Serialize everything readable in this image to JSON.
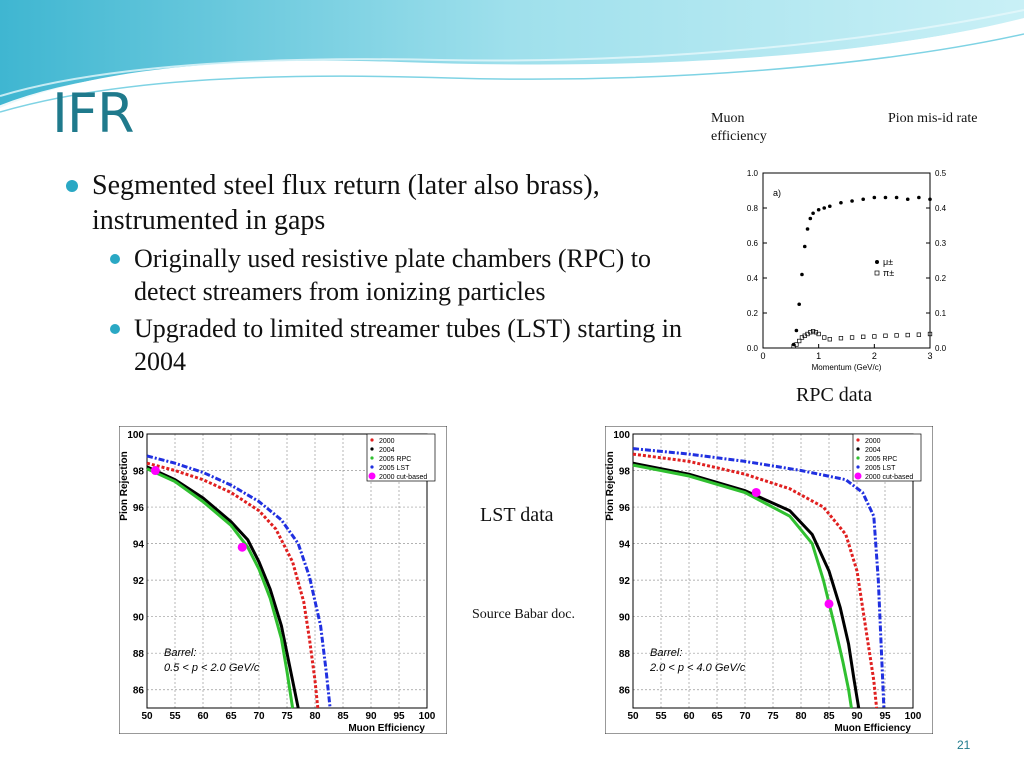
{
  "slide": {
    "title": "IFR",
    "bullets": [
      {
        "text": "Segmented steel flux return (later also brass), instrumented in gaps"
      },
      {
        "text": "Originally used resistive plate chambers (RPC) to detect streamers from ionizing particles"
      },
      {
        "text": "Upgraded to limited streamer tubes (LST) starting in 2004"
      }
    ],
    "labels": {
      "muon_efficiency": "Muon efficiency",
      "pion_misid": "Pion mis-id rate",
      "rpc_caption": "RPC data",
      "lst_caption": "LST data",
      "source": "Source Babar doc."
    },
    "page_number": "21",
    "colors": {
      "title": "#1f7a8c",
      "bullet": "#2aa8c4",
      "wave": "#6ccde0"
    }
  },
  "chart_data": [
    {
      "type": "scatter",
      "panel_label": "a)",
      "xlabel": "Momentum  (GeV/c)",
      "ylabel": "",
      "xlim": [
        0,
        3
      ],
      "ylim": [
        0,
        1.0
      ],
      "y2lim": [
        0,
        0.5
      ],
      "xticks": [
        "0",
        "1",
        "2",
        "3"
      ],
      "yticks": [
        "0.0",
        "0.2",
        "0.4",
        "0.6",
        "0.8",
        "1.0"
      ],
      "y2ticks": [
        "0.0",
        "0.1",
        "0.2",
        "0.3",
        "0.4",
        "0.5"
      ],
      "legend": [
        "μ±",
        "π±"
      ],
      "series": [
        {
          "name": "μ±",
          "marker": "dot",
          "x": [
            0.55,
            0.6,
            0.65,
            0.7,
            0.75,
            0.8,
            0.85,
            0.9,
            1.0,
            1.1,
            1.2,
            1.4,
            1.6,
            1.8,
            2.0,
            2.2,
            2.4,
            2.6,
            2.8,
            3.0
          ],
          "y": [
            0.02,
            0.1,
            0.25,
            0.42,
            0.58,
            0.68,
            0.74,
            0.77,
            0.79,
            0.8,
            0.81,
            0.83,
            0.84,
            0.85,
            0.86,
            0.86,
            0.86,
            0.85,
            0.86,
            0.85
          ]
        },
        {
          "name": "π±",
          "marker": "square",
          "x": [
            0.55,
            0.6,
            0.65,
            0.7,
            0.75,
            0.8,
            0.85,
            0.9,
            0.95,
            1.0,
            1.1,
            1.2,
            1.4,
            1.6,
            1.8,
            2.0,
            2.2,
            2.4,
            2.6,
            2.8,
            3.0
          ],
          "y": [
            0.005,
            0.01,
            0.02,
            0.03,
            0.035,
            0.04,
            0.045,
            0.048,
            0.045,
            0.04,
            0.03,
            0.025,
            0.028,
            0.03,
            0.032,
            0.033,
            0.035,
            0.036,
            0.037,
            0.038,
            0.04
          ]
        }
      ]
    },
    {
      "type": "line",
      "xlabel": "Muon Efficiency",
      "ylabel": "Pion Rejection",
      "xlim": [
        50,
        100
      ],
      "ylim": [
        85,
        100
      ],
      "xticks": [
        "50",
        "55",
        "60",
        "65",
        "70",
        "75",
        "80",
        "85",
        "90",
        "95",
        "100"
      ],
      "yticks": [
        "86",
        "88",
        "90",
        "92",
        "94",
        "96",
        "98",
        "100"
      ],
      "annotation": [
        "Barrel:",
        "0.5 < p < 2.0 GeV/c"
      ],
      "series": [
        {
          "name": "2000",
          "color": "#e02020",
          "x": [
            50,
            55,
            60,
            65,
            70,
            73,
            76,
            78,
            79,
            80,
            80.5
          ],
          "y": [
            98.4,
            98.0,
            97.5,
            96.8,
            95.8,
            94.8,
            93.0,
            90.8,
            88.8,
            86.5,
            85.0
          ]
        },
        {
          "name": "2004",
          "color": "#000000",
          "x": [
            50,
            55,
            60,
            65,
            68,
            70,
            72,
            74,
            75,
            76,
            77
          ],
          "y": [
            98.2,
            97.5,
            96.5,
            95.2,
            94.2,
            93.0,
            91.5,
            89.5,
            88.0,
            86.5,
            85.0
          ]
        },
        {
          "name": "2005 RPC",
          "color": "#30c030",
          "x": [
            50,
            55,
            60,
            65,
            68,
            70,
            72,
            74,
            75,
            76
          ],
          "y": [
            98.1,
            97.4,
            96.3,
            95.0,
            93.8,
            92.6,
            91.0,
            88.8,
            87.0,
            85.0
          ]
        },
        {
          "name": "2005 LST",
          "color": "#2030e0",
          "x": [
            50,
            55,
            60,
            65,
            70,
            74,
            77,
            79,
            81,
            82,
            82.7
          ],
          "y": [
            98.8,
            98.4,
            97.9,
            97.2,
            96.3,
            95.3,
            94.0,
            92.2,
            89.5,
            87.0,
            85.0
          ]
        },
        {
          "name": "2000 cut-based",
          "color": "#ff00ff",
          "marker": "dot",
          "x": [
            51.5,
            67
          ],
          "y": [
            98.0,
            93.8
          ]
        }
      ]
    },
    {
      "type": "line",
      "xlabel": "Muon Efficiency",
      "ylabel": "Pion Rejection",
      "xlim": [
        50,
        100
      ],
      "ylim": [
        85,
        100
      ],
      "xticks": [
        "50",
        "55",
        "60",
        "65",
        "70",
        "75",
        "80",
        "85",
        "90",
        "95",
        "100"
      ],
      "yticks": [
        "86",
        "88",
        "90",
        "92",
        "94",
        "96",
        "98",
        "100"
      ],
      "annotation": [
        "Barrel:",
        "2.0 < p < 4.0 GeV/c"
      ],
      "series": [
        {
          "name": "2000",
          "color": "#e02020",
          "x": [
            50,
            60,
            70,
            78,
            84,
            88,
            90,
            91,
            92,
            93,
            93.5
          ],
          "y": [
            98.9,
            98.5,
            97.8,
            97.0,
            96.0,
            94.5,
            92.5,
            90.5,
            88.5,
            86.5,
            85.0
          ]
        },
        {
          "name": "2004",
          "color": "#000000",
          "x": [
            50,
            60,
            70,
            78,
            82,
            85,
            87,
            88.5,
            89.5,
            90.3
          ],
          "y": [
            98.4,
            97.8,
            96.9,
            95.8,
            94.5,
            92.5,
            90.5,
            88.5,
            86.5,
            85.0
          ]
        },
        {
          "name": "2005 RPC",
          "color": "#30c030",
          "x": [
            50,
            60,
            70,
            78,
            82,
            84,
            86,
            87.5,
            88.5,
            89
          ],
          "y": [
            98.3,
            97.7,
            96.8,
            95.5,
            94.0,
            92.0,
            89.5,
            87.5,
            86.0,
            85.0
          ]
        },
        {
          "name": "2005 LST",
          "color": "#2030e0",
          "x": [
            50,
            60,
            70,
            80,
            88,
            91,
            93,
            93.8,
            94.3,
            94.8
          ],
          "y": [
            99.2,
            98.9,
            98.5,
            98.0,
            97.5,
            96.8,
            95.5,
            92.0,
            88.5,
            85.0
          ]
        },
        {
          "name": "2000 cut-based",
          "color": "#ff00ff",
          "marker": "dot",
          "x": [
            72,
            85
          ],
          "y": [
            96.8,
            90.7
          ]
        }
      ]
    }
  ]
}
